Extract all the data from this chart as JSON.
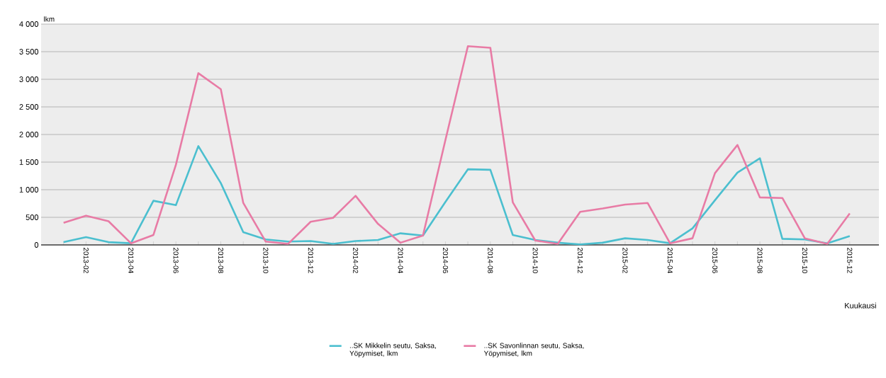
{
  "chart_data": {
    "type": "line",
    "xlabel": "Kuukausi",
    "ylabel": "lkm",
    "categories": [
      null,
      "2013-02",
      null,
      "2013-04",
      null,
      "2013-06",
      null,
      "2013-08",
      null,
      "2013-10",
      null,
      "2013-12",
      null,
      "2014-02",
      null,
      "2014-04",
      null,
      "2014-06",
      null,
      "2014-08",
      null,
      "2014-10",
      null,
      "2014-12",
      null,
      "2015-02",
      null,
      "2015-04",
      null,
      "2015-06",
      null,
      "2015-08",
      null,
      "2015-10",
      null,
      "2015-12"
    ],
    "series": [
      {
        "name": "..SK Mikkelin seutu, Saksa, Yöpymiset, lkm",
        "color": "#4bbfcf",
        "values": [
          50,
          140,
          50,
          30,
          800,
          720,
          1790,
          1120,
          230,
          100,
          60,
          70,
          20,
          70,
          90,
          210,
          170,
          780,
          1370,
          1360,
          180,
          90,
          40,
          10,
          40,
          120,
          90,
          30,
          300,
          810,
          1310,
          1570,
          110,
          100,
          30,
          160
        ]
      },
      {
        "name": "..SK Savonlinnan seutu, Saksa, Yöpymiset, lkm",
        "color": "#e87ba5",
        "values": [
          400,
          530,
          430,
          30,
          180,
          1450,
          3110,
          2820,
          760,
          60,
          20,
          420,
          490,
          890,
          380,
          40,
          170,
          1900,
          3600,
          3570,
          770,
          80,
          20,
          600,
          660,
          730,
          760,
          30,
          120,
          1300,
          1810,
          860,
          850,
          120,
          20,
          570
        ]
      }
    ],
    "ylim": [
      0,
      4000
    ],
    "yticks": [
      0,
      500,
      {
        "value": 1000,
        "label": "1 000"
      },
      {
        "value": 1500,
        "label": "1 500"
      },
      {
        "value": 2000,
        "label": "2 000"
      },
      {
        "value": 2500,
        "label": "2 500"
      },
      {
        "value": 3000,
        "label": "3 000"
      },
      {
        "value": 3500,
        "label": "3 500"
      },
      {
        "value": 4000,
        "label": "4 000"
      }
    ],
    "grid": "y",
    "legend": "bottom",
    "marker": "none",
    "line_style": "solid"
  }
}
